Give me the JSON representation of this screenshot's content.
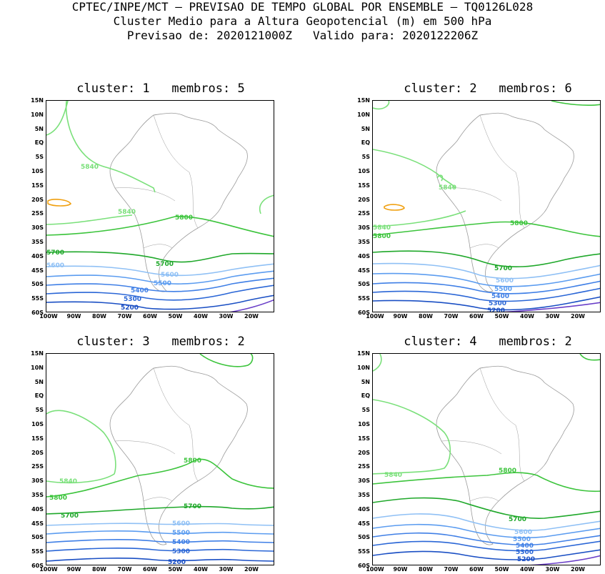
{
  "header": {
    "line1": "CPTEC/INPE/MCT – PREVISAO DE TEMPO GLOBAL POR ENSEMBLE – TQ0126L028",
    "line2": "Cluster Medio para a Altura Geopotencial (m) em 500 hPa",
    "line3": "Previsao de: 2020121000Z   Valido para: 2020122206Z"
  },
  "lat_labels": [
    "15N",
    "10N",
    "5N",
    "EQ",
    "5S",
    "10S",
    "15S",
    "20S",
    "25S",
    "30S",
    "35S",
    "40S",
    "45S",
    "50S",
    "55S",
    "60S"
  ],
  "lon_labels": [
    "100W",
    "90W",
    "80W",
    "70W",
    "60W",
    "50W",
    "40W",
    "30W",
    "20W"
  ],
  "colors": {
    "c5200": "#1a4fc4",
    "c5300": "#2a66d6",
    "c5400": "#3f7fe6",
    "c5500": "#5b9cf0",
    "c5600": "#8fc0f5",
    "c5700": "#1fa82a",
    "c5800": "#3cc43c",
    "c5840": "#7ae07a",
    "c5880": "#f0a010",
    "c5100": "#6a3fc8",
    "coast": "#999999"
  },
  "panels": [
    {
      "title": "cluster: 1   membros: 5",
      "labels": {
        "l5840a": "5840",
        "l5840b": "5840",
        "l5800": "5800",
        "l5700a": "5700",
        "l5700b": "5700",
        "l5600a": "5600",
        "l5600b": "5600",
        "l5500": "5500",
        "l5400": "5400",
        "l5300": "5300",
        "l5200": "5200"
      }
    },
    {
      "title": "cluster: 2   membros: 6",
      "labels": {
        "l5840a": "5840",
        "l5840b": "5840",
        "l5800a": "5800",
        "l5800b": "5800",
        "l5700": "5700",
        "l5600": "5600",
        "l5500": "5500",
        "l5400": "5400",
        "l5300": "5300",
        "l5200": "5200"
      }
    },
    {
      "title": "cluster: 3   membros: 2",
      "labels": {
        "l5840": "5840",
        "l5800a": "5800",
        "l5800b": "5800",
        "l5700a": "5700",
        "l5700b": "5700",
        "l5600": "5600",
        "l5500": "5500",
        "l5400": "5400",
        "l5300": "5300",
        "l5200": "5200"
      }
    },
    {
      "title": "cluster: 4   membros: 2",
      "labels": {
        "l5840": "5840",
        "l5800": "5800",
        "l5700": "5700",
        "l5600": "5600",
        "l5500": "5500",
        "l5400": "5400",
        "l5300": "5300",
        "l5200": "5200"
      }
    }
  ]
}
